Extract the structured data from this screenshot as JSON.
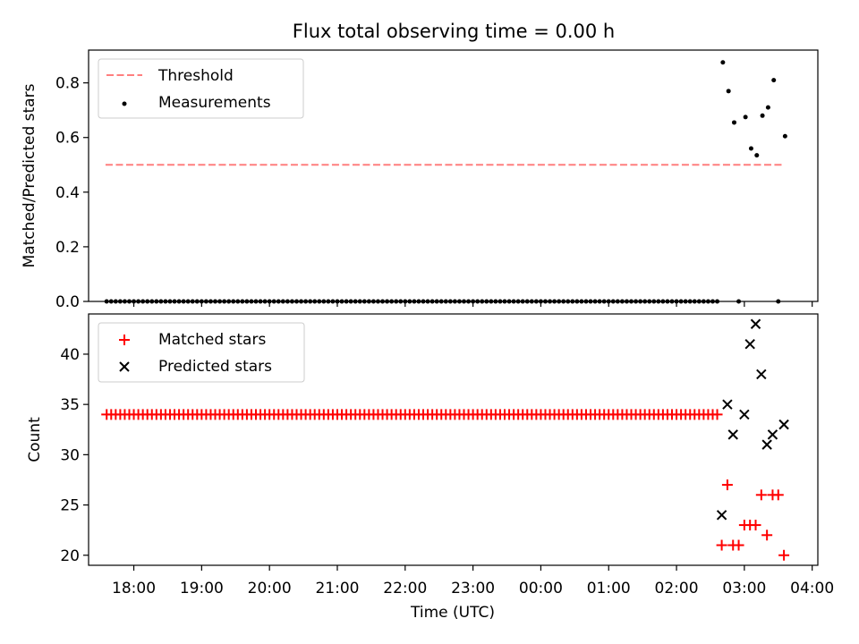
{
  "figure": {
    "title": "Flux total observing time = 0.00 h"
  },
  "chart_data": [
    {
      "type": "scatter",
      "ylabel": "Matched/Predicted stars",
      "xlabel": "",
      "ylim": [
        0,
        0.92
      ],
      "yticks": [
        0.0,
        0.2,
        0.4,
        0.6,
        0.8
      ],
      "ytick_labels": [
        "0.0",
        "0.2",
        "0.4",
        "0.6",
        "0.8"
      ],
      "legend_position": "top-left",
      "legend": [
        {
          "name": "Threshold",
          "kind": "dashed-line",
          "color": "#ff7f7f"
        },
        {
          "name": "Measurements",
          "kind": "dot",
          "color": "#000000"
        }
      ],
      "threshold": {
        "name": "Threshold",
        "y": 0.5,
        "x_start": "17:35",
        "x_end": "03:35"
      },
      "zero_measurements": {
        "name": "Measurements",
        "y": 0,
        "x_start": "17:36",
        "x_end": "02:36",
        "interval_min": 4,
        "also_at": [
          "02:55",
          "03:30"
        ]
      },
      "measurements": [
        {
          "x": "02:41",
          "y": 0.875
        },
        {
          "x": "02:46",
          "y": 0.77
        },
        {
          "x": "02:51",
          "y": 0.655
        },
        {
          "x": "03:01",
          "y": 0.675
        },
        {
          "x": "03:06",
          "y": 0.56
        },
        {
          "x": "03:11",
          "y": 0.535
        },
        {
          "x": "03:16",
          "y": 0.68
        },
        {
          "x": "03:21",
          "y": 0.71
        },
        {
          "x": "03:26",
          "y": 0.81
        },
        {
          "x": "03:36",
          "y": 0.605
        }
      ]
    },
    {
      "type": "scatter",
      "xlabel": "Time (UTC)",
      "ylabel": "Count",
      "ylim": [
        19,
        44
      ],
      "yticks": [
        20,
        25,
        30,
        35,
        40
      ],
      "ytick_labels": [
        "20",
        "25",
        "30",
        "35",
        "40"
      ],
      "xlim": [
        "17:20",
        "04:05"
      ],
      "xticks": [
        "18:00",
        "19:00",
        "20:00",
        "21:00",
        "22:00",
        "23:00",
        "00:00",
        "01:00",
        "02:00",
        "03:00",
        "04:00"
      ],
      "legend_position": "top-left",
      "legend": [
        {
          "name": "Matched stars",
          "kind": "plus",
          "color": "#ff0000"
        },
        {
          "name": "Predicted stars",
          "kind": "x",
          "color": "#000000"
        }
      ],
      "constant_matched": {
        "name": "Matched stars",
        "y": 34,
        "x_start": "17:36",
        "x_end": "02:36",
        "interval_min": 4
      },
      "matched_stars": [
        {
          "x": "02:40",
          "y": 21
        },
        {
          "x": "02:45",
          "y": 27
        },
        {
          "x": "02:50",
          "y": 21
        },
        {
          "x": "02:55",
          "y": 21
        },
        {
          "x": "03:00",
          "y": 23
        },
        {
          "x": "03:05",
          "y": 23
        },
        {
          "x": "03:10",
          "y": 23
        },
        {
          "x": "03:15",
          "y": 26
        },
        {
          "x": "03:20",
          "y": 22
        },
        {
          "x": "03:25",
          "y": 26
        },
        {
          "x": "03:30",
          "y": 26
        },
        {
          "x": "03:35",
          "y": 20
        }
      ],
      "predicted_stars": [
        {
          "x": "02:40",
          "y": 24
        },
        {
          "x": "02:45",
          "y": 35
        },
        {
          "x": "02:50",
          "y": 32
        },
        {
          "x": "03:00",
          "y": 34
        },
        {
          "x": "03:05",
          "y": 41
        },
        {
          "x": "03:10",
          "y": 43
        },
        {
          "x": "03:15",
          "y": 38
        },
        {
          "x": "03:20",
          "y": 31
        },
        {
          "x": "03:25",
          "y": 32
        },
        {
          "x": "03:35",
          "y": 33
        }
      ]
    }
  ]
}
